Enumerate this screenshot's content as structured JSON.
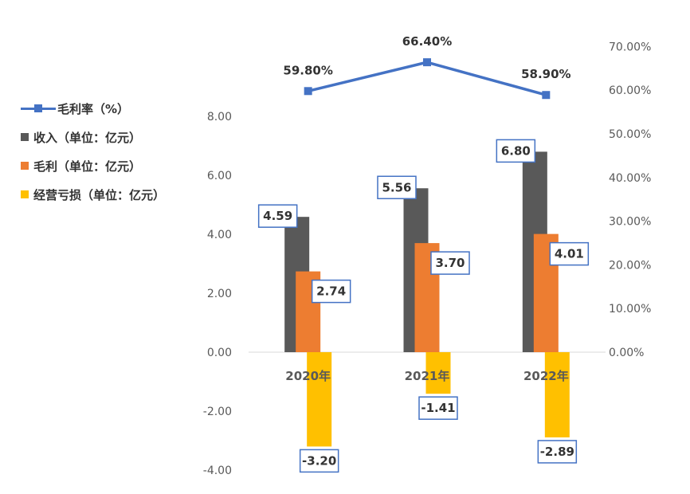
{
  "chart_data": {
    "type": "bar+line",
    "categories": [
      "2020年",
      "2021年",
      "2022年"
    ],
    "series": [
      {
        "key": "revenue",
        "name": "收入（单位：亿元）",
        "type": "bar",
        "axis": "left",
        "color": "#595959",
        "values": [
          4.59,
          5.56,
          6.8
        ],
        "labels": [
          "4.59",
          "5.56",
          "6.80"
        ]
      },
      {
        "key": "gross_profit",
        "name": "毛利（单位：亿元）",
        "type": "bar",
        "axis": "left",
        "color": "#ED7D31",
        "values": [
          2.74,
          3.7,
          4.01
        ],
        "labels": [
          "2.74",
          "3.70",
          "4.01"
        ]
      },
      {
        "key": "loss",
        "name": "经营亏损（单位：亿元）",
        "type": "bar",
        "axis": "left",
        "color": "#FFC000",
        "values": [
          -3.2,
          -1.41,
          -2.89
        ],
        "labels": [
          "-3.20",
          "-1.41",
          "-2.89"
        ]
      },
      {
        "key": "margin",
        "name": "毛利率（%）",
        "type": "line",
        "axis": "right",
        "color": "#4472C4",
        "values": [
          59.8,
          66.4,
          58.9
        ],
        "labels": [
          "59.80%",
          "66.40%",
          "58.90%"
        ]
      }
    ],
    "y_left": {
      "min": -4,
      "max": 8,
      "ticks": [
        "-4.00",
        "-2.00",
        "0.00",
        "2.00",
        "4.00",
        "6.00",
        "8.00"
      ]
    },
    "y_right": {
      "min": 0,
      "max": 70,
      "ticks": [
        "0.00%",
        "10.00%",
        "20.00%",
        "30.00%",
        "40.00%",
        "50.00%",
        "60.00%",
        "70.00%"
      ]
    },
    "label_box_color": "#4472C4",
    "legend_position": "left"
  }
}
